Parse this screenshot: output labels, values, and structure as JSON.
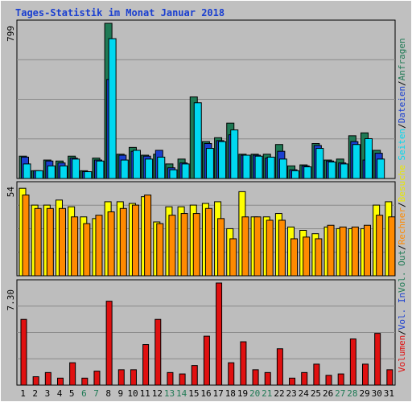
{
  "title": "Tages-Statistik im Monat Januar 2018",
  "colors": {
    "background": "#c0c0c0",
    "plot_background": "#bdbdbd",
    "grid": "#8a8a8a",
    "title": "#1a3fd0",
    "anfragen": "#1f7a55",
    "dateien": "#1a3fd0",
    "seiten": "#00d8f0",
    "besuche": "#ffff00",
    "rechner": "#ff8a00",
    "volumen": "#e01010",
    "weekend_label": "#1f7a55",
    "weekday_label": "#000000"
  },
  "side_labels": {
    "panel1": [
      {
        "text": "Anfragen",
        "color": "#1f7a55"
      },
      {
        "text": "/",
        "color": "#000000"
      },
      {
        "text": "Dateien",
        "color": "#1a3fd0"
      },
      {
        "text": "/",
        "color": "#000000"
      },
      {
        "text": "Seiten",
        "color": "#00d8f0"
      }
    ],
    "panel2": [
      {
        "text": "Besuche",
        "color": "#e8e800"
      },
      {
        "text": "/",
        "color": "#000000"
      },
      {
        "text": "Rechner",
        "color": "#ff8a00"
      },
      {
        "text": "/",
        "color": "#000000"
      },
      {
        "text": "Vol. Out",
        "color": "#1f7a55"
      }
    ],
    "panel3": [
      {
        "text": "Vol. In",
        "color": "#1a3fd0"
      },
      {
        "text": "/",
        "color": "#000000"
      },
      {
        "text": "Volumen",
        "color": "#e01010"
      }
    ]
  },
  "chart_data": [
    {
      "type": "bar",
      "ymax_label": "799",
      "ylim": [
        0,
        799
      ],
      "categories": [
        "1",
        "2",
        "3",
        "4",
        "5",
        "6",
        "7",
        "8",
        "9",
        "10",
        "11",
        "12",
        "13",
        "14",
        "15",
        "16",
        "17",
        "18",
        "19",
        "20",
        "21",
        "22",
        "23",
        "24",
        "25",
        "26",
        "27",
        "28",
        "29",
        "30",
        "31"
      ],
      "weekend_days": [
        "6",
        "7",
        "13",
        "14",
        "20",
        "21",
        "27",
        "28"
      ],
      "series": [
        {
          "name": "Anfragen",
          "values": [
            115,
            40,
            95,
            90,
            115,
            40,
            105,
            799,
            125,
            160,
            120,
            125,
            75,
            100,
            420,
            190,
            210,
            285,
            125,
            125,
            125,
            175,
            65,
            70,
            180,
            95,
            100,
            220,
            235,
            145,
            0
          ]
        },
        {
          "name": "Dateien",
          "values": [
            110,
            40,
            90,
            80,
            105,
            35,
            95,
            510,
            120,
            140,
            115,
            145,
            55,
            80,
            0,
            180,
            195,
            225,
            120,
            120,
            105,
            140,
            45,
            65,
            170,
            90,
            80,
            190,
            95,
            130,
            0
          ]
        },
        {
          "name": "Seiten",
          "values": [
            75,
            40,
            65,
            65,
            100,
            35,
            90,
            720,
            95,
            145,
            100,
            110,
            45,
            75,
            390,
            155,
            190,
            250,
            120,
            115,
            110,
            100,
            40,
            60,
            155,
            85,
            75,
            175,
            205,
            100,
            0
          ]
        }
      ]
    },
    {
      "type": "bar",
      "ymax_label": "54",
      "ylim": [
        0,
        54
      ],
      "categories": [
        "1",
        "2",
        "3",
        "4",
        "5",
        "6",
        "7",
        "8",
        "9",
        "10",
        "11",
        "12",
        "13",
        "14",
        "15",
        "16",
        "17",
        "18",
        "19",
        "20",
        "21",
        "22",
        "23",
        "24",
        "25",
        "26",
        "27",
        "28",
        "29",
        "30",
        "31"
      ],
      "series": [
        {
          "name": "Besuche",
          "values": [
            52,
            42,
            42,
            45,
            41,
            35,
            34,
            44,
            44,
            43,
            47,
            32,
            41,
            41,
            42,
            43,
            44,
            28,
            50,
            35,
            35,
            37,
            29,
            27,
            25,
            29,
            28,
            28,
            28,
            42,
            44
          ]
        },
        {
          "name": "Rechner",
          "values": [
            48,
            40,
            40,
            40,
            35,
            31,
            36,
            38,
            40,
            42,
            48,
            31,
            36,
            37,
            37,
            40,
            34,
            22,
            35,
            35,
            33,
            33,
            22,
            23,
            22,
            30,
            29,
            29,
            30,
            36,
            35
          ]
        }
      ]
    },
    {
      "type": "bar",
      "ymax_label": "7.30",
      "ylim": [
        0,
        7.3
      ],
      "categories": [
        "1",
        "2",
        "3",
        "4",
        "5",
        "6",
        "7",
        "8",
        "9",
        "10",
        "11",
        "12",
        "13",
        "14",
        "15",
        "16",
        "17",
        "18",
        "19",
        "20",
        "21",
        "22",
        "23",
        "24",
        "25",
        "26",
        "27",
        "28",
        "29",
        "30",
        "31"
      ],
      "series": [
        {
          "name": "Volumen",
          "values": [
            4.7,
            0.6,
            0.9,
            0.5,
            1.6,
            0.5,
            1.0,
            6.0,
            1.1,
            1.1,
            2.9,
            4.7,
            0.9,
            0.8,
            1.4,
            3.5,
            7.3,
            1.6,
            3.1,
            1.1,
            0.9,
            2.6,
            0.5,
            0.9,
            1.5,
            0.7,
            0.8,
            3.3,
            1.5,
            3.7,
            1.1
          ]
        }
      ]
    }
  ]
}
